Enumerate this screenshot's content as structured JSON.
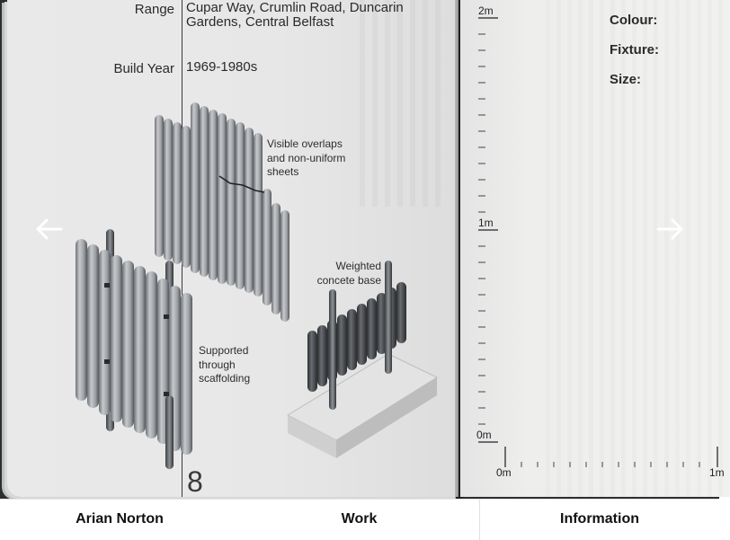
{
  "left_page": {
    "specs": [
      {
        "label": "Range",
        "value_lines": [
          "Cupar Way, Crumlin Road, Duncarin",
          "Gardens, Central Belfast"
        ]
      },
      {
        "label": "Build Year",
        "value_lines": [
          "1969-1980s"
        ]
      }
    ],
    "annotations": {
      "overlaps": [
        "Visible overlaps",
        "and non-uniform",
        "sheets"
      ],
      "base": [
        "Weighted",
        "concete base"
      ],
      "scaffolding": [
        "Supported",
        "through",
        "scaffolding"
      ]
    },
    "page_number": "8"
  },
  "right_page": {
    "fields": [
      "Colour:",
      "Fixture:",
      "Size:"
    ],
    "vertical_scale": {
      "top": "2m",
      "middle": "1m",
      "bottom": "0m"
    },
    "horizontal_scale": {
      "start": "0m",
      "end": "1m"
    }
  },
  "nav": {
    "prev_icon": "arrow-left-icon",
    "next_icon": "arrow-right-icon"
  },
  "footer": {
    "name": "Arian Norton",
    "work": "Work",
    "information": "Information"
  },
  "colors": {
    "page": "#e8e8e8",
    "ink": "#2a2a2a",
    "metal_light": "#b9bcc0",
    "metal_dark": "#3c3f43",
    "concrete": "#d8d8d8"
  }
}
